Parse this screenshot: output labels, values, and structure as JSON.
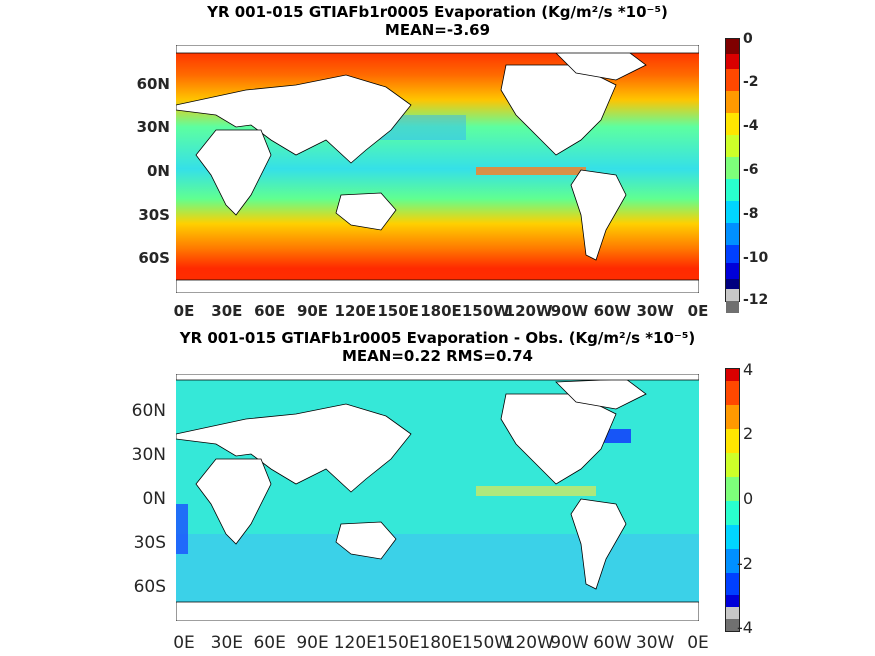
{
  "panels": [
    {
      "title_line1": "YR 001-015 GTIAFb1r0005  Evaporation (Kg/m²/s *10⁻⁵)",
      "title_line2": "MEAN=-3.69",
      "y_ticks": [
        "60N",
        "30N",
        "0N",
        "30S",
        "60S"
      ],
      "x_ticks": [
        "0E",
        "30E",
        "60E",
        "90E",
        "120E",
        "150E",
        "180E",
        "150W",
        "120W",
        "90W",
        "60W",
        "30W",
        "0E"
      ],
      "colorbar_ticks": [
        "0",
        "-2",
        "-4",
        "-6",
        "-8",
        "-10",
        "-12"
      ],
      "colorbar_range": [
        -12,
        0
      ],
      "stats": {
        "mean": -3.69
      }
    },
    {
      "title_line1": "YR 001-015 GTIAFb1r0005 Evaporation - Obs. (Kg/m²/s *10⁻⁵)",
      "title_line2": "MEAN=0.22   RMS=0.74",
      "y_ticks": [
        "60N",
        "30N",
        "0N",
        "30S",
        "60S"
      ],
      "x_ticks": [
        "0E",
        "30E",
        "60E",
        "90E",
        "120E",
        "150E",
        "180E",
        "150W",
        "120W",
        "90W",
        "60W",
        "30W",
        "0E"
      ],
      "colorbar_ticks": [
        "4",
        "2",
        "0",
        "-2",
        "-4"
      ],
      "colorbar_range": [
        -4,
        4
      ],
      "stats": {
        "mean": 0.22,
        "rms": 0.74
      }
    }
  ],
  "colormap": [
    "#00007f",
    "#0000d9",
    "#0040ff",
    "#0090ff",
    "#00d5ff",
    "#29ffce",
    "#7dff7a",
    "#ceff29",
    "#ffe500",
    "#ff9900",
    "#ff4800",
    "#d90000",
    "#7f0000"
  ]
}
